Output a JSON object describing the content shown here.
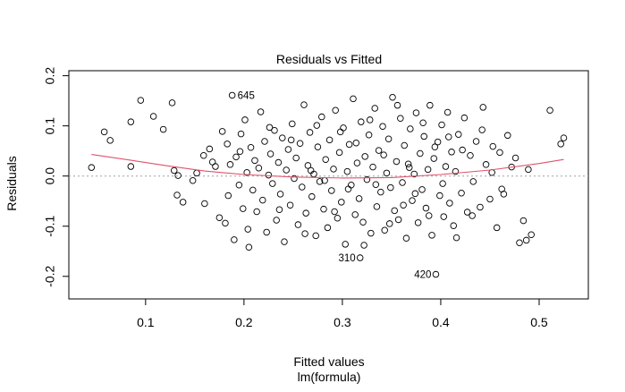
{
  "chart_data": {
    "type": "scatter",
    "title": "Residuals vs Fitted",
    "xlabel": "Fitted values",
    "sublabel": "lm(formula)",
    "ylabel": "Residuals",
    "xlim": [
      0.022,
      0.55
    ],
    "ylim": [
      -0.245,
      0.21
    ],
    "x_ticks": [
      0.1,
      0.2,
      0.3,
      0.4,
      0.5
    ],
    "x_tick_labels": [
      "0.1",
      "0.2",
      "0.3",
      "0.4",
      "0.5"
    ],
    "y_ticks": [
      -0.2,
      -0.1,
      0.0,
      0.1,
      0.2
    ],
    "y_tick_labels": [
      "-0.2",
      "-0.1",
      "0.0",
      "0.1",
      "0.2"
    ],
    "reference_line": {
      "y": 0,
      "style": "dotted",
      "color": "#a0a0a0"
    },
    "smooth_line": {
      "color": "#df536b",
      "x": [
        0.045,
        0.08,
        0.12,
        0.16,
        0.2,
        0.25,
        0.3,
        0.35,
        0.4,
        0.45,
        0.5,
        0.525
      ],
      "y": [
        0.043,
        0.033,
        0.021,
        0.01,
        0.003,
        -0.002,
        -0.004,
        -0.003,
        0.003,
        0.012,
        0.025,
        0.033
      ]
    },
    "labeled_points": [
      {
        "id": "645",
        "x": 0.188,
        "y": 0.161
      },
      {
        "id": "310",
        "x": 0.318,
        "y": -0.163
      },
      {
        "id": "420",
        "x": 0.395,
        "y": -0.196
      }
    ],
    "points": [
      [
        0.045,
        0.017
      ],
      [
        0.058,
        0.088
      ],
      [
        0.064,
        0.071
      ],
      [
        0.085,
        0.019
      ],
      [
        0.085,
        0.108
      ],
      [
        0.095,
        0.151
      ],
      [
        0.108,
        0.119
      ],
      [
        0.118,
        0.093
      ],
      [
        0.127,
        0.146
      ],
      [
        0.129,
        0.011
      ],
      [
        0.132,
        -0.038
      ],
      [
        0.133,
        0.001
      ],
      [
        0.138,
        -0.052
      ],
      [
        0.148,
        -0.009
      ],
      [
        0.152,
        0.006
      ],
      [
        0.159,
        0.041
      ],
      [
        0.16,
        -0.055
      ],
      [
        0.165,
        0.054
      ],
      [
        0.168,
        0.028
      ],
      [
        0.171,
        0.019
      ],
      [
        0.175,
        -0.083
      ],
      [
        0.178,
        0.089
      ],
      [
        0.181,
        -0.094
      ],
      [
        0.183,
        0.064
      ],
      [
        0.184,
        -0.039
      ],
      [
        0.186,
        0.023
      ],
      [
        0.188,
        0.161
      ],
      [
        0.19,
        -0.127
      ],
      [
        0.192,
        0.038
      ],
      [
        0.195,
        -0.018
      ],
      [
        0.197,
        0.084
      ],
      [
        0.199,
        -0.065
      ],
      [
        0.201,
        0.112
      ],
      [
        0.203,
        0.007
      ],
      [
        0.205,
        -0.142
      ],
      [
        0.207,
        0.057
      ],
      [
        0.209,
        -0.028
      ],
      [
        0.211,
        0.031
      ],
      [
        0.213,
        -0.071
      ],
      [
        0.215,
        0.016
      ],
      [
        0.217,
        0.128
      ],
      [
        0.219,
        -0.048
      ],
      [
        0.221,
        0.069
      ],
      [
        0.223,
        -0.112
      ],
      [
        0.225,
        0.002
      ],
      [
        0.227,
        0.044
      ],
      [
        0.229,
        -0.015
      ],
      [
        0.231,
        0.091
      ],
      [
        0.233,
        -0.088
      ],
      [
        0.235,
        0.027
      ],
      [
        0.237,
        -0.036
      ],
      [
        0.239,
        0.076
      ],
      [
        0.241,
        -0.131
      ],
      [
        0.243,
        0.012
      ],
      [
        0.245,
        0.053
      ],
      [
        0.247,
        -0.058
      ],
      [
        0.249,
        0.104
      ],
      [
        0.251,
        -0.005
      ],
      [
        0.253,
        0.036
      ],
      [
        0.255,
        -0.097
      ],
      [
        0.257,
        0.065
      ],
      [
        0.259,
        -0.022
      ],
      [
        0.261,
        0.142
      ],
      [
        0.263,
        -0.074
      ],
      [
        0.265,
        0.021
      ],
      [
        0.267,
        0.087
      ],
      [
        0.269,
        -0.041
      ],
      [
        0.271,
        0.004
      ],
      [
        0.273,
        -0.119
      ],
      [
        0.275,
        0.058
      ],
      [
        0.277,
        -0.011
      ],
      [
        0.279,
        0.118
      ],
      [
        0.281,
        -0.066
      ],
      [
        0.283,
        0.033
      ],
      [
        0.285,
        -0.103
      ],
      [
        0.287,
        0.072
      ],
      [
        0.289,
        -0.029
      ],
      [
        0.291,
        0.014
      ],
      [
        0.293,
        0.131
      ],
      [
        0.295,
        -0.084
      ],
      [
        0.297,
        0.047
      ],
      [
        0.299,
        -0.052
      ],
      [
        0.301,
        0.096
      ],
      [
        0.303,
        -0.136
      ],
      [
        0.305,
        0.009
      ],
      [
        0.307,
        0.063
      ],
      [
        0.309,
        -0.018
      ],
      [
        0.311,
        0.154
      ],
      [
        0.313,
        -0.077
      ],
      [
        0.315,
        0.026
      ],
      [
        0.317,
        -0.045
      ],
      [
        0.319,
        0.108
      ],
      [
        0.321,
        -0.092
      ],
      [
        0.323,
        0.039
      ],
      [
        0.325,
        -0.007
      ],
      [
        0.327,
        0.082
      ],
      [
        0.329,
        -0.114
      ],
      [
        0.331,
        0.018
      ],
      [
        0.333,
        0.135
      ],
      [
        0.335,
        -0.061
      ],
      [
        0.337,
        0.051
      ],
      [
        0.339,
        -0.032
      ],
      [
        0.341,
        0.099
      ],
      [
        0.343,
        -0.108
      ],
      [
        0.345,
        0.006
      ],
      [
        0.347,
        0.074
      ],
      [
        0.349,
        -0.023
      ],
      [
        0.351,
        0.157
      ],
      [
        0.353,
        -0.069
      ],
      [
        0.355,
        0.029
      ],
      [
        0.357,
        -0.087
      ],
      [
        0.359,
        0.115
      ],
      [
        0.361,
        -0.013
      ],
      [
        0.363,
        0.061
      ],
      [
        0.365,
        -0.124
      ],
      [
        0.367,
        0.024
      ],
      [
        0.369,
        0.094
      ],
      [
        0.371,
        -0.049
      ],
      [
        0.373,
        0.004
      ],
      [
        0.375,
        0.126
      ],
      [
        0.377,
        -0.093
      ],
      [
        0.379,
        0.045
      ],
      [
        0.381,
        -0.027
      ],
      [
        0.383,
        0.079
      ],
      [
        0.385,
        -0.064
      ],
      [
        0.387,
        0.013
      ],
      [
        0.389,
        0.141
      ],
      [
        0.391,
        -0.118
      ],
      [
        0.393,
        0.035
      ],
      [
        0.395,
        -0.196
      ],
      [
        0.397,
        0.068
      ],
      [
        0.399,
        -0.039
      ],
      [
        0.401,
        0.102
      ],
      [
        0.403,
        -0.081
      ],
      [
        0.405,
        0.019
      ],
      [
        0.407,
        0.127
      ],
      [
        0.409,
        -0.054
      ],
      [
        0.411,
        0.048
      ],
      [
        0.413,
        -0.099
      ],
      [
        0.415,
        0.009
      ],
      [
        0.418,
        0.083
      ],
      [
        0.421,
        -0.034
      ],
      [
        0.424,
        0.116
      ],
      [
        0.427,
        -0.072
      ],
      [
        0.43,
        0.041
      ],
      [
        0.433,
        -0.011
      ],
      [
        0.436,
        0.069
      ],
      [
        0.44,
        -0.062
      ],
      [
        0.443,
        0.137
      ],
      [
        0.446,
        0.023
      ],
      [
        0.45,
        -0.046
      ],
      [
        0.453,
        0.059
      ],
      [
        0.457,
        -0.103
      ],
      [
        0.46,
        0.047
      ],
      [
        0.464,
        -0.036
      ],
      [
        0.468,
        0.081
      ],
      [
        0.472,
        0.018
      ],
      [
        0.476,
        0.036
      ],
      [
        0.48,
        -0.133
      ],
      [
        0.484,
        -0.089
      ],
      [
        0.487,
        -0.128
      ],
      [
        0.489,
        0.013
      ],
      [
        0.492,
        -0.117
      ],
      [
        0.511,
        0.131
      ],
      [
        0.522,
        0.064
      ],
      [
        0.525,
        0.076
      ],
      [
        0.196,
        0.049
      ],
      [
        0.204,
        -0.106
      ],
      [
        0.226,
        0.097
      ],
      [
        0.236,
        -0.067
      ],
      [
        0.248,
        0.072
      ],
      [
        0.262,
        -0.115
      ],
      [
        0.268,
        0.011
      ],
      [
        0.274,
        0.101
      ],
      [
        0.282,
        -0.009
      ],
      [
        0.292,
        -0.071
      ],
      [
        0.298,
        0.088
      ],
      [
        0.306,
        -0.026
      ],
      [
        0.314,
        0.066
      ],
      [
        0.322,
        -0.138
      ],
      [
        0.328,
        0.112
      ],
      [
        0.334,
        -0.017
      ],
      [
        0.342,
        0.042
      ],
      [
        0.348,
        -0.095
      ],
      [
        0.356,
        0.141
      ],
      [
        0.362,
        -0.058
      ],
      [
        0.368,
        0.017
      ],
      [
        0.374,
        -0.035
      ],
      [
        0.382,
        0.106
      ],
      [
        0.388,
        -0.079
      ],
      [
        0.394,
        0.058
      ],
      [
        0.402,
        -0.015
      ],
      [
        0.408,
        0.078
      ],
      [
        0.416,
        -0.123
      ],
      [
        0.422,
        0.052
      ],
      [
        0.432,
        -0.079
      ],
      [
        0.442,
        0.092
      ],
      [
        0.452,
        0.007
      ],
      [
        0.462,
        -0.026
      ],
      [
        0.318,
        -0.163
      ]
    ]
  }
}
